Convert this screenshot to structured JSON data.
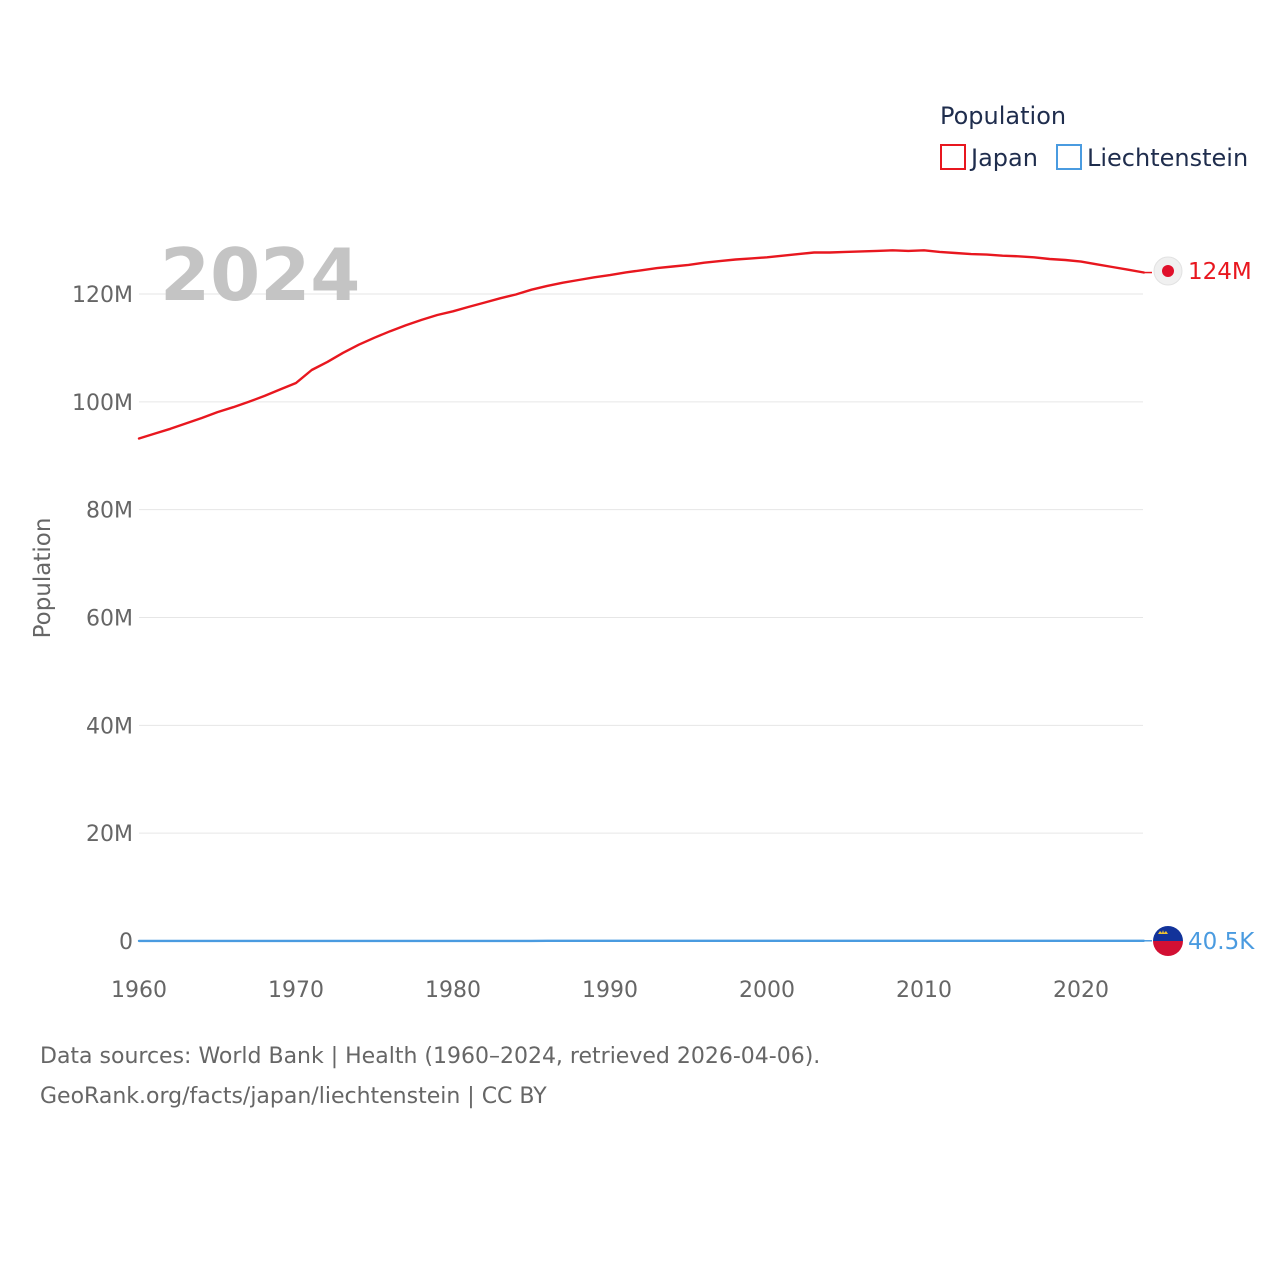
{
  "chart_data": {
    "type": "line",
    "title": "",
    "year_watermark": "2024",
    "xlabel": "",
    "ylabel": "Population",
    "xlim": [
      1960,
      2024
    ],
    "ylim": [
      0,
      130000000
    ],
    "grid": true,
    "legend": {
      "title": "Population",
      "position": "top-right"
    },
    "x_ticks": [
      {
        "value": 1960,
        "label": "1960"
      },
      {
        "value": 1970,
        "label": "1970"
      },
      {
        "value": 1980,
        "label": "1980"
      },
      {
        "value": 1990,
        "label": "1990"
      },
      {
        "value": 2000,
        "label": "2000"
      },
      {
        "value": 2010,
        "label": "2010"
      },
      {
        "value": 2020,
        "label": "2020"
      }
    ],
    "y_ticks": [
      {
        "value": 0,
        "label": "0"
      },
      {
        "value": 20000000,
        "label": "20M"
      },
      {
        "value": 40000000,
        "label": "40M"
      },
      {
        "value": 60000000,
        "label": "60M"
      },
      {
        "value": 80000000,
        "label": "80M"
      },
      {
        "value": 100000000,
        "label": "100M"
      },
      {
        "value": 120000000,
        "label": "120M"
      }
    ],
    "x": [
      1960,
      1961,
      1962,
      1963,
      1964,
      1965,
      1966,
      1967,
      1968,
      1969,
      1970,
      1971,
      1972,
      1973,
      1974,
      1975,
      1976,
      1977,
      1978,
      1979,
      1980,
      1981,
      1982,
      1983,
      1984,
      1985,
      1986,
      1987,
      1988,
      1989,
      1990,
      1991,
      1992,
      1993,
      1994,
      1995,
      1996,
      1997,
      1998,
      1999,
      2000,
      2001,
      2002,
      2003,
      2004,
      2005,
      2006,
      2007,
      2008,
      2009,
      2010,
      2011,
      2012,
      2013,
      2014,
      2015,
      2016,
      2017,
      2018,
      2019,
      2020,
      2021,
      2022,
      2023,
      2024
    ],
    "series": [
      {
        "name": "Japan",
        "color": "#e8171f",
        "end_label": "124M",
        "values": [
          93.2,
          94.1,
          95.0,
          96.0,
          97.0,
          98.1,
          99.0,
          100.0,
          101.1,
          102.3,
          103.5,
          105.9,
          107.4,
          109.1,
          110.6,
          111.9,
          113.1,
          114.2,
          115.2,
          116.1,
          116.8,
          117.6,
          118.4,
          119.2,
          119.9,
          120.8,
          121.5,
          122.1,
          122.6,
          123.1,
          123.5,
          124.0,
          124.4,
          124.8,
          125.1,
          125.4,
          125.8,
          126.1,
          126.4,
          126.6,
          126.8,
          127.1,
          127.4,
          127.7,
          127.7,
          127.8,
          127.9,
          128.0,
          128.1,
          128.0,
          128.1,
          127.8,
          127.6,
          127.4,
          127.3,
          127.1,
          127.0,
          126.8,
          126.5,
          126.3,
          126.0,
          125.5,
          125.0,
          124.5,
          123.98
        ]
      },
      {
        "name": "Liechtenstein",
        "color": "#4a9be0",
        "end_label": "40.5K",
        "values": [
          0.0165,
          0.0168,
          0.0172,
          0.0176,
          0.018,
          0.0185,
          0.019,
          0.0195,
          0.02,
          0.0205,
          0.0212,
          0.0218,
          0.0223,
          0.0228,
          0.0233,
          0.0238,
          0.0243,
          0.0248,
          0.0252,
          0.0255,
          0.0259,
          0.0263,
          0.0267,
          0.027,
          0.0273,
          0.0276,
          0.0279,
          0.0281,
          0.0284,
          0.0287,
          0.0289,
          0.0294,
          0.0298,
          0.0302,
          0.0305,
          0.0308,
          0.0311,
          0.0314,
          0.0317,
          0.032,
          0.033,
          0.0335,
          0.0339,
          0.0343,
          0.0346,
          0.0349,
          0.0352,
          0.0355,
          0.0357,
          0.036,
          0.0362,
          0.0365,
          0.0367,
          0.0369,
          0.0372,
          0.0375,
          0.0378,
          0.0381,
          0.0384,
          0.0387,
          0.039,
          0.0394,
          0.0398,
          0.0401,
          0.0405
        ]
      }
    ],
    "values_unit": "millions"
  },
  "footer": {
    "sources": "Data sources: World Bank | Health (1960–2024, retrieved 2026-04-06).",
    "credit": "GeoRank.org/facts/japan/liechtenstein | CC BY"
  }
}
